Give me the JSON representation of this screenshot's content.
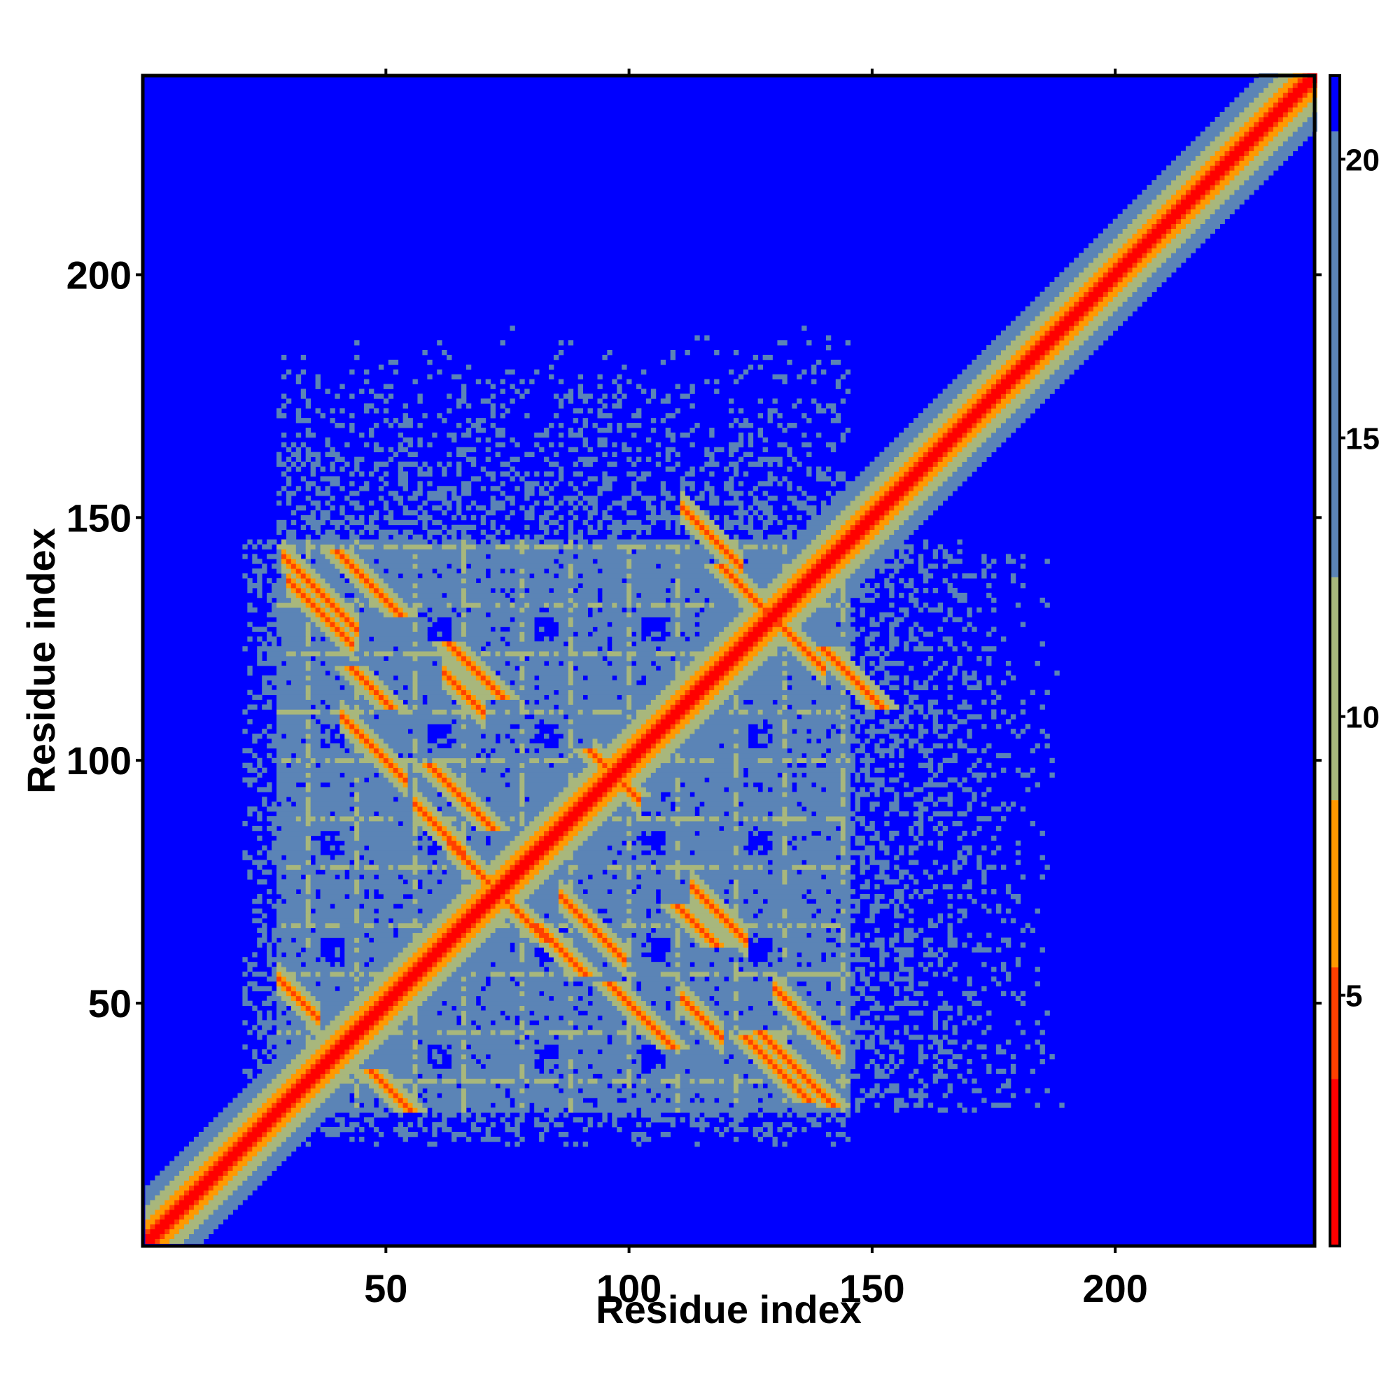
{
  "chart_data": {
    "type": "heatmap",
    "title": "",
    "xlabel": "Residue index",
    "ylabel": "Residue index",
    "xlim": [
      1,
      241
    ],
    "ylim": [
      1,
      241
    ],
    "xticks": [
      50,
      100,
      150,
      200
    ],
    "yticks": [
      50,
      100,
      150,
      200
    ],
    "xtick_labels": [
      "50",
      "100",
      "150",
      "200"
    ],
    "ytick_labels": [
      "50",
      "100",
      "150",
      "200"
    ],
    "colorbar": {
      "range": [
        0.5,
        21.5
      ],
      "ticks": [
        5,
        10,
        15,
        20
      ],
      "tick_labels": [
        "5",
        "10",
        "15",
        "20"
      ],
      "colors": [
        {
          "from": 0.5,
          "to": 3.5,
          "color": "#ff0000"
        },
        {
          "from": 3.5,
          "to": 5.5,
          "color": "#ff4000"
        },
        {
          "from": 5.5,
          "to": 8.5,
          "color": "#ff9900"
        },
        {
          "from": 8.5,
          "to": 12.5,
          "color": "#a8b77c"
        },
        {
          "from": 12.5,
          "to": 20.5,
          "color": "#5b84b6"
        },
        {
          "from": 20.5,
          "to": 21.5,
          "color": "#0000ff"
        }
      ]
    },
    "background_value": 21,
    "background_color": "#0000ff",
    "diagonal_band": {
      "description": "distance increases with |i-j|; red on diagonal, orange, green, steel-blue toward |i-j| ~ 12",
      "width_residues": 12
    },
    "contact_domain": {
      "start": 28,
      "end": 145,
      "value": 16
    },
    "antiparallel_strands": [
      {
        "sum": 167,
        "from": 30,
        "to": 43
      },
      {
        "sum": 83,
        "from": 28,
        "to": 36
      },
      {
        "sum": 171,
        "from": 29,
        "to": 44
      },
      {
        "sum": 183,
        "from": 130,
        "to": 143
      },
      {
        "sum": 263,
        "from": 111,
        "to": 123
      },
      {
        "sum": 259,
        "from": 124,
        "to": 140
      },
      {
        "sum": 180,
        "from": 62,
        "to": 70
      },
      {
        "sum": 150,
        "from": 41,
        "to": 54
      },
      {
        "sum": 158,
        "from": 86,
        "to": 99
      },
      {
        "sum": 194,
        "from": 93,
        "to": 102
      },
      {
        "sum": 146,
        "from": 63,
        "to": 73
      },
      {
        "sum": 187,
        "from": 113,
        "to": 124
      },
      {
        "sum": 162,
        "from": 111,
        "to": 119
      },
      {
        "sum": 147,
        "from": 56,
        "to": 66
      }
    ]
  }
}
